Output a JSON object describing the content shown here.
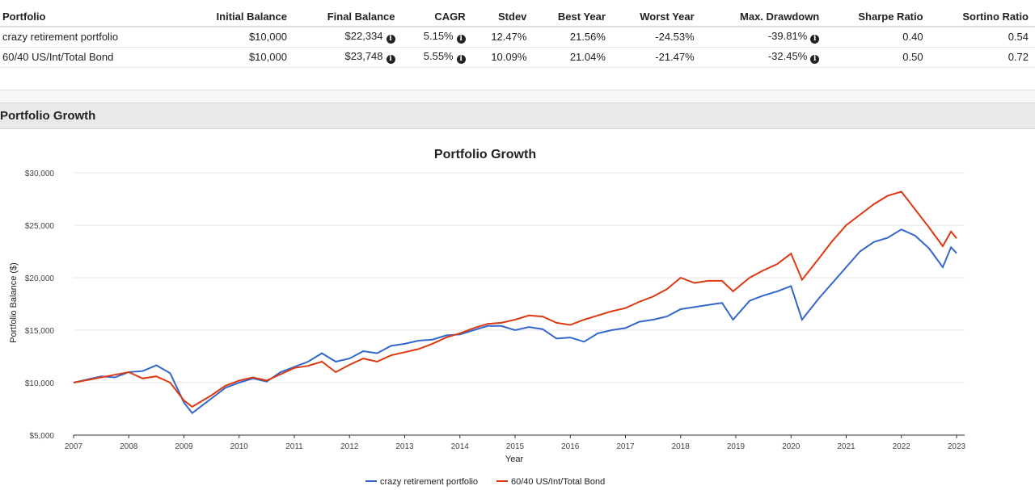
{
  "table": {
    "headers": [
      "Portfolio",
      "Initial Balance",
      "Final Balance",
      "CAGR",
      "Stdev",
      "Best Year",
      "Worst Year",
      "Max. Drawdown",
      "Sharpe Ratio",
      "Sortino Ratio"
    ],
    "rows": [
      [
        "crazy retirement portfolio",
        "$10,000",
        "$22,334",
        "5.15%",
        "12.47%",
        "21.56%",
        "-24.53%",
        "-39.81%",
        "0.40",
        "0.54"
      ],
      [
        "60/40 US/Int/Total Bond",
        "$10,000",
        "$23,748",
        "5.55%",
        "10.09%",
        "21.04%",
        "-21.47%",
        "-32.45%",
        "0.50",
        "0.72"
      ]
    ]
  },
  "section_title": "Portfolio Growth",
  "chart_data": {
    "type": "line",
    "title": "Portfolio Growth",
    "xlabel": "Year",
    "ylabel": "Portfolio Balance ($)",
    "xlim": [
      2007,
      2023
    ],
    "ylim": [
      5000,
      30000
    ],
    "x_ticks": [
      "2007",
      "2008",
      "2009",
      "2010",
      "2011",
      "2012",
      "2013",
      "2014",
      "2015",
      "2016",
      "2017",
      "2018",
      "2019",
      "2020",
      "2021",
      "2022",
      "2023"
    ],
    "y_ticks": [
      "$5,000",
      "$10,000",
      "$15,000",
      "$20,000",
      "$25,000",
      "$30,000"
    ],
    "grid": true,
    "legend": "bottom",
    "series": [
      {
        "name": "crazy retirement portfolio",
        "color": "#3366cc",
        "points": [
          [
            2007,
            10000
          ],
          [
            2007.25,
            10300
          ],
          [
            2007.5,
            10600
          ],
          [
            2007.75,
            10500
          ],
          [
            2008,
            11000
          ],
          [
            2008.25,
            11100
          ],
          [
            2008.5,
            11650
          ],
          [
            2008.75,
            10900
          ],
          [
            2009,
            8100
          ],
          [
            2009.15,
            7100
          ],
          [
            2009.5,
            8500
          ],
          [
            2009.75,
            9500
          ],
          [
            2010,
            10000
          ],
          [
            2010.25,
            10400
          ],
          [
            2010.5,
            10100
          ],
          [
            2010.75,
            11000
          ],
          [
            2011,
            11500
          ],
          [
            2011.25,
            12000
          ],
          [
            2011.5,
            12800
          ],
          [
            2011.75,
            12000
          ],
          [
            2012,
            12300
          ],
          [
            2012.25,
            13000
          ],
          [
            2012.5,
            12800
          ],
          [
            2012.75,
            13500
          ],
          [
            2013,
            13700
          ],
          [
            2013.25,
            14000
          ],
          [
            2013.5,
            14100
          ],
          [
            2013.75,
            14500
          ],
          [
            2014,
            14600
          ],
          [
            2014.25,
            15000
          ],
          [
            2014.5,
            15400
          ],
          [
            2014.75,
            15400
          ],
          [
            2015,
            15000
          ],
          [
            2015.25,
            15300
          ],
          [
            2015.5,
            15100
          ],
          [
            2015.75,
            14200
          ],
          [
            2016,
            14300
          ],
          [
            2016.25,
            13900
          ],
          [
            2016.5,
            14700
          ],
          [
            2016.75,
            15000
          ],
          [
            2017,
            15200
          ],
          [
            2017.25,
            15800
          ],
          [
            2017.5,
            16000
          ],
          [
            2017.75,
            16300
          ],
          [
            2018,
            17000
          ],
          [
            2018.25,
            17200
          ],
          [
            2018.5,
            17400
          ],
          [
            2018.75,
            17600
          ],
          [
            2018.95,
            16000
          ],
          [
            2019.25,
            17800
          ],
          [
            2019.5,
            18300
          ],
          [
            2019.75,
            18700
          ],
          [
            2020,
            19200
          ],
          [
            2020.2,
            16000
          ],
          [
            2020.5,
            18000
          ],
          [
            2020.75,
            19500
          ],
          [
            2021,
            21000
          ],
          [
            2021.25,
            22500
          ],
          [
            2021.5,
            23400
          ],
          [
            2021.75,
            23800
          ],
          [
            2022,
            24600
          ],
          [
            2022.25,
            24000
          ],
          [
            2022.5,
            22800
          ],
          [
            2022.75,
            21000
          ],
          [
            2022.9,
            22900
          ],
          [
            2023,
            22334
          ]
        ]
      },
      {
        "name": "60/40 US/Int/Total Bond",
        "color": "#dc3912",
        "points": [
          [
            2007,
            10000
          ],
          [
            2007.5,
            10500
          ],
          [
            2008,
            11000
          ],
          [
            2008.25,
            10400
          ],
          [
            2008.5,
            10600
          ],
          [
            2008.75,
            10000
          ],
          [
            2009,
            8300
          ],
          [
            2009.15,
            7700
          ],
          [
            2009.5,
            8800
          ],
          [
            2009.75,
            9700
          ],
          [
            2010,
            10200
          ],
          [
            2010.25,
            10500
          ],
          [
            2010.5,
            10200
          ],
          [
            2010.75,
            10800
          ],
          [
            2011,
            11400
          ],
          [
            2011.25,
            11600
          ],
          [
            2011.5,
            12000
          ],
          [
            2011.75,
            11000
          ],
          [
            2012,
            11700
          ],
          [
            2012.25,
            12300
          ],
          [
            2012.5,
            12000
          ],
          [
            2012.75,
            12600
          ],
          [
            2013,
            12900
          ],
          [
            2013.25,
            13200
          ],
          [
            2013.5,
            13700
          ],
          [
            2013.75,
            14300
          ],
          [
            2014,
            14700
          ],
          [
            2014.25,
            15200
          ],
          [
            2014.5,
            15600
          ],
          [
            2014.75,
            15700
          ],
          [
            2015,
            16000
          ],
          [
            2015.25,
            16400
          ],
          [
            2015.5,
            16300
          ],
          [
            2015.75,
            15700
          ],
          [
            2016,
            15500
          ],
          [
            2016.25,
            16000
          ],
          [
            2016.5,
            16400
          ],
          [
            2016.75,
            16800
          ],
          [
            2017,
            17100
          ],
          [
            2017.25,
            17700
          ],
          [
            2017.5,
            18200
          ],
          [
            2017.75,
            18900
          ],
          [
            2018,
            20000
          ],
          [
            2018.25,
            19500
          ],
          [
            2018.5,
            19700
          ],
          [
            2018.75,
            19700
          ],
          [
            2018.95,
            18700
          ],
          [
            2019.25,
            20000
          ],
          [
            2019.5,
            20700
          ],
          [
            2019.75,
            21300
          ],
          [
            2020,
            22300
          ],
          [
            2020.2,
            19800
          ],
          [
            2020.5,
            21800
          ],
          [
            2020.75,
            23500
          ],
          [
            2021,
            25000
          ],
          [
            2021.25,
            26000
          ],
          [
            2021.5,
            27000
          ],
          [
            2021.75,
            27800
          ],
          [
            2022,
            28200
          ],
          [
            2022.25,
            26500
          ],
          [
            2022.5,
            24800
          ],
          [
            2022.75,
            23000
          ],
          [
            2022.9,
            24400
          ],
          [
            2023,
            23748
          ]
        ]
      }
    ]
  }
}
